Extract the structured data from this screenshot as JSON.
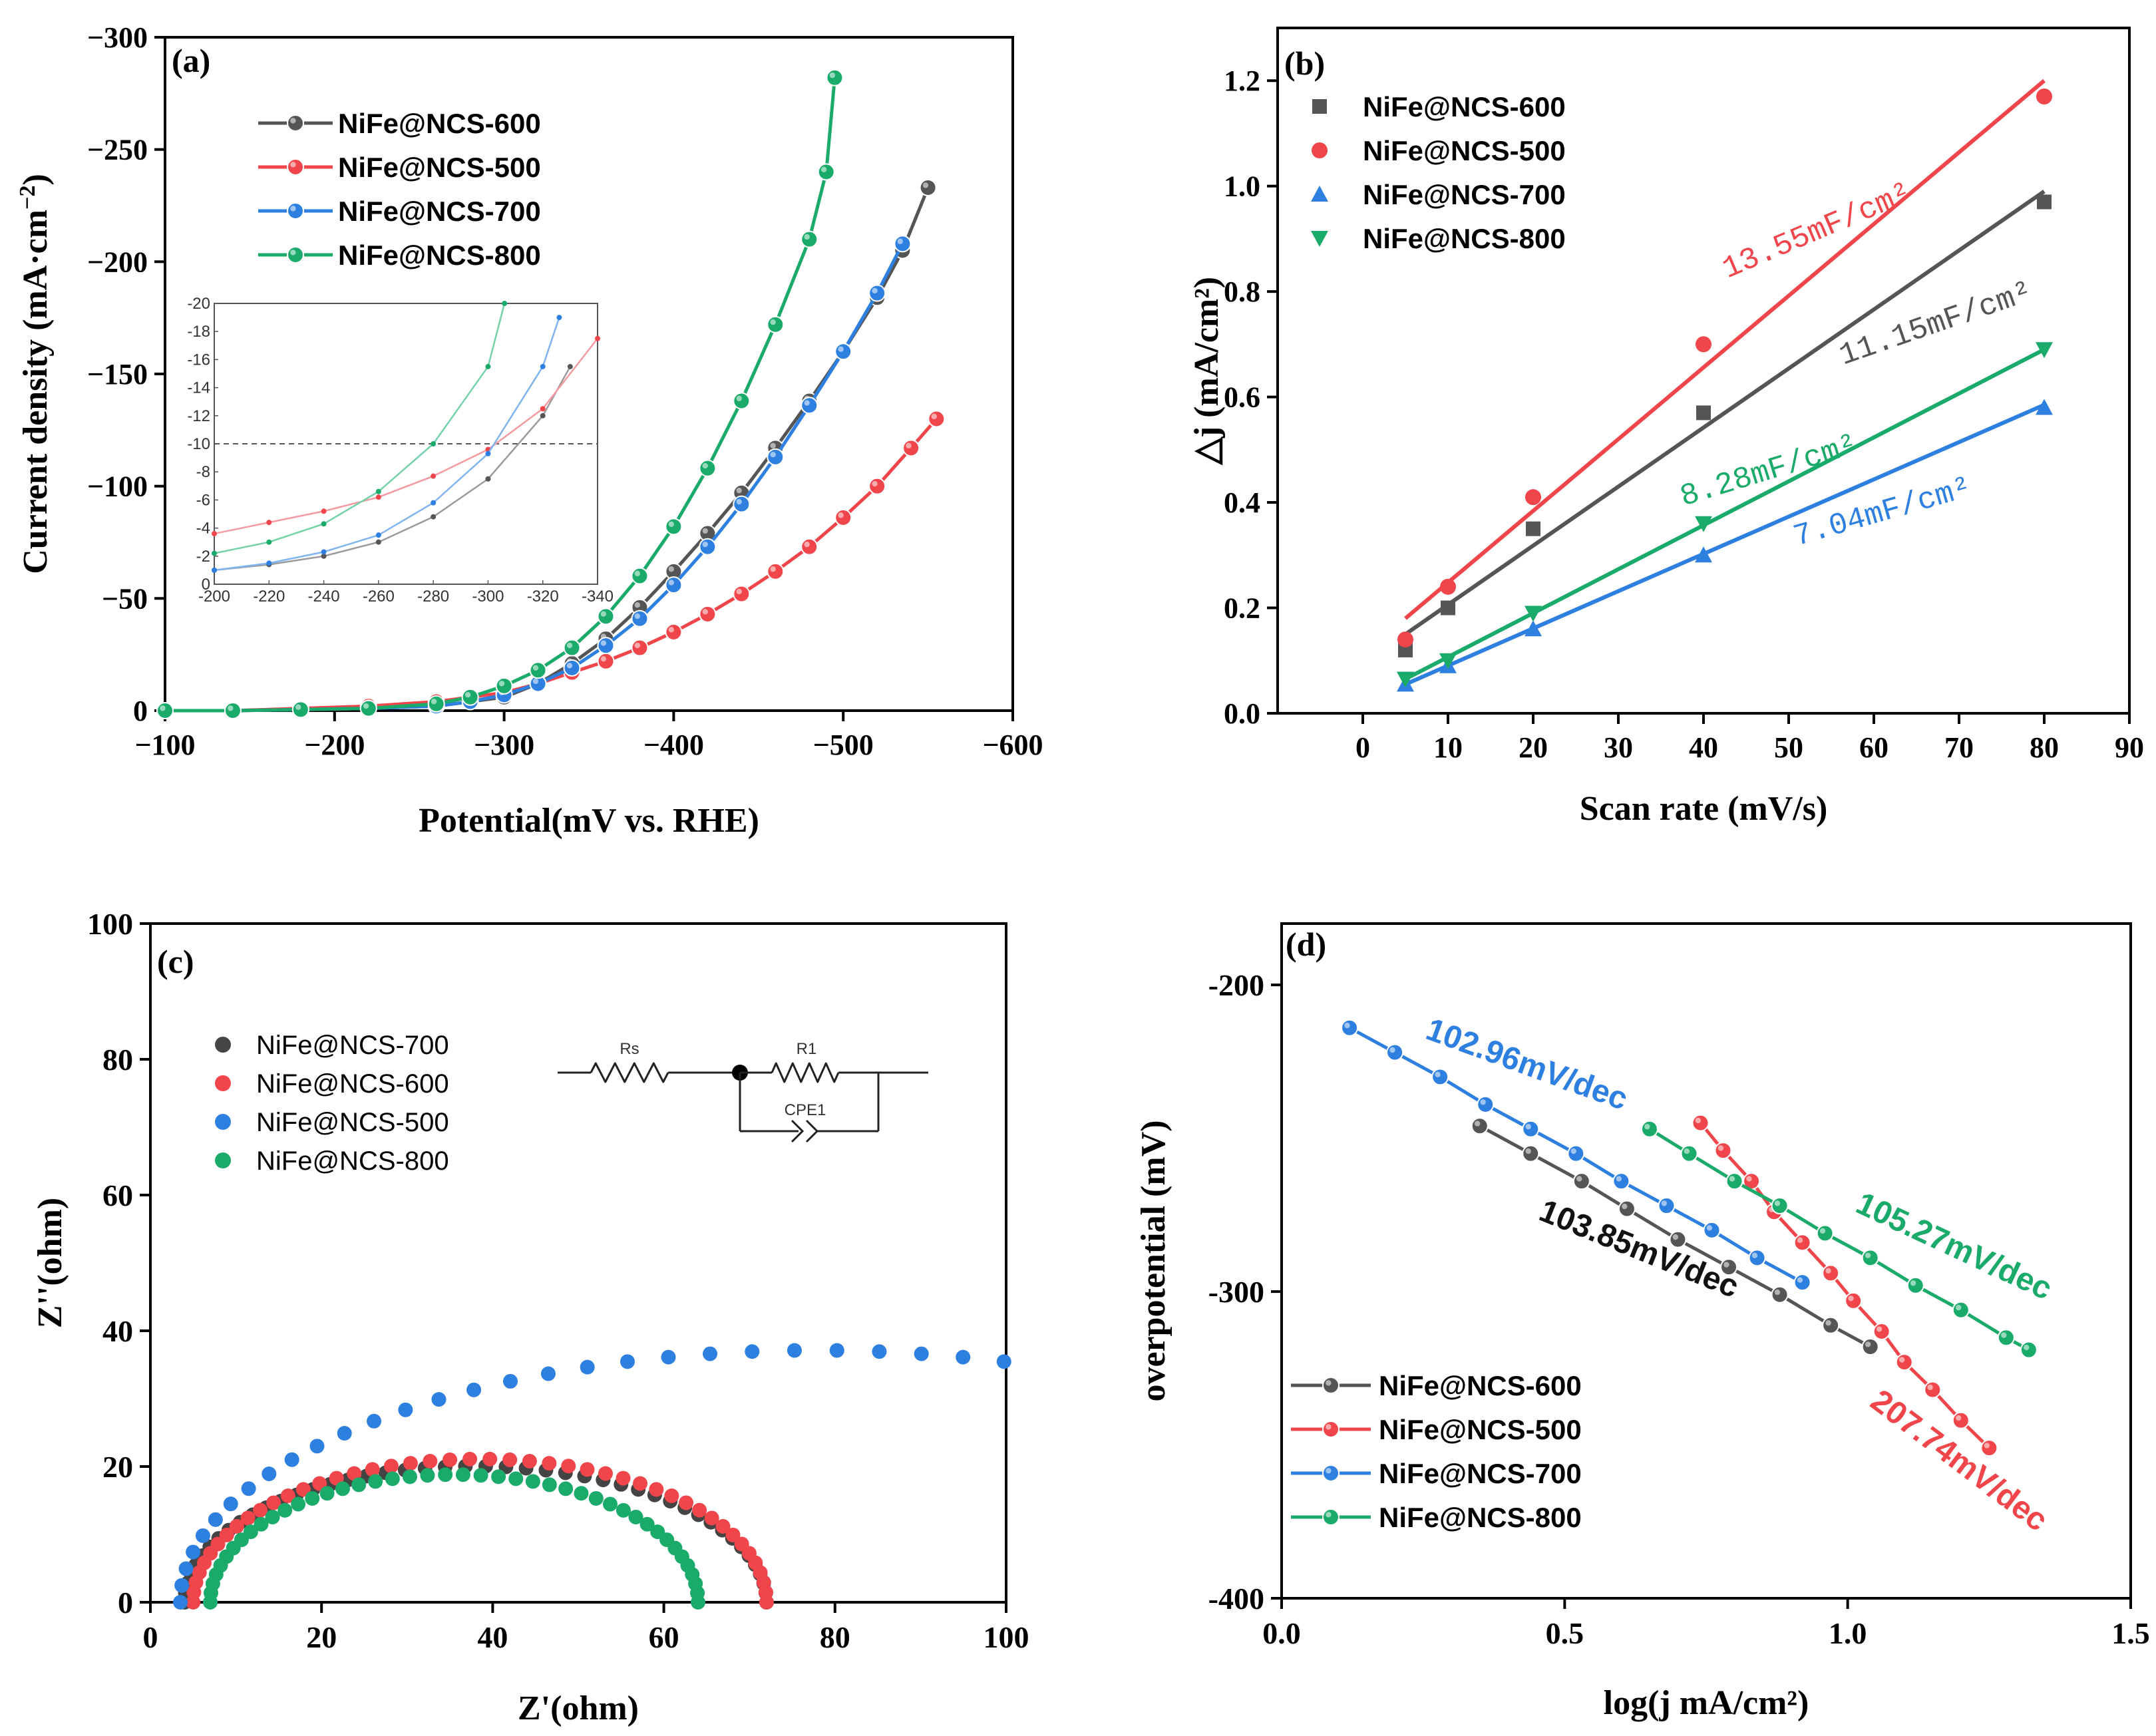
{
  "chart_data": [
    {
      "id": "a",
      "type": "line",
      "panel_label": "(a)",
      "xlabel": "Potential(mV vs. RHE)",
      "ylabel_parts": [
        "Current density (mA·cm",
        "−2",
        ")"
      ],
      "xlim": [
        -100,
        -600
      ],
      "ylim": [
        0,
        -300
      ],
      "xticks": [
        -100,
        -200,
        -300,
        -400,
        -500,
        -600
      ],
      "xtick_labels": [
        "−100",
        "−200",
        "−300",
        "−400",
        "−500",
        "−600"
      ],
      "yticks": [
        0,
        -50,
        -100,
        -150,
        -200,
        -250,
        -300
      ],
      "ytick_labels": [
        "0",
        "−50",
        "−100",
        "−150",
        "−200",
        "−250",
        "−300"
      ],
      "series": [
        {
          "name": "NiFe@NCS-600",
          "color": "#555555",
          "x": [
            -100,
            -140,
            -180,
            -220,
            -260,
            -300,
            -320,
            -340,
            -360,
            -380,
            -400,
            -420,
            -440,
            -460,
            -480,
            -500,
            -520,
            -535,
            -550
          ],
          "y": [
            0,
            0,
            -0.5,
            -1,
            -2,
            -6,
            -12,
            -21,
            -32,
            -46,
            -62,
            -79,
            -97,
            -117,
            -138,
            -160,
            -184,
            -205,
            -233
          ]
        },
        {
          "name": "NiFe@NCS-500",
          "color": "#f0454a",
          "x": [
            -100,
            -140,
            -180,
            -220,
            -260,
            -300,
            -320,
            -340,
            -360,
            -380,
            -400,
            -420,
            -440,
            -460,
            -480,
            -500,
            -520,
            -540,
            -555
          ],
          "y": [
            0,
            0,
            -1,
            -2,
            -4,
            -8,
            -12,
            -17,
            -22,
            -28,
            -35,
            -43,
            -52,
            -62,
            -73,
            -86,
            -100,
            -117,
            -130
          ]
        },
        {
          "name": "NiFe@NCS-700",
          "color": "#2d7fe0",
          "x": [
            -100,
            -140,
            -180,
            -220,
            -260,
            -280,
            -300,
            -320,
            -340,
            -360,
            -380,
            -400,
            -420,
            -440,
            -460,
            -480,
            -500,
            -520,
            -535
          ],
          "y": [
            0,
            0,
            -0.5,
            -1,
            -2,
            -4,
            -7,
            -12,
            -19,
            -29,
            -41,
            -56,
            -73,
            -92,
            -113,
            -136,
            -160,
            -186,
            -208
          ]
        },
        {
          "name": "NiFe@NCS-800",
          "color": "#1aaa6a",
          "x": [
            -100,
            -140,
            -180,
            -220,
            -260,
            -280,
            -300,
            -320,
            -340,
            -360,
            -380,
            -400,
            -420,
            -440,
            -460,
            -480,
            -490,
            -495
          ],
          "y": [
            0,
            0,
            -0.5,
            -1,
            -3,
            -6,
            -11,
            -18,
            -28,
            -42,
            -60,
            -82,
            -108,
            -138,
            -172,
            -210,
            -240,
            -282
          ]
        }
      ],
      "inset": {
        "xlim": [
          -200,
          -340
        ],
        "ylim": [
          0,
          -20
        ],
        "xticks": [
          -200,
          -220,
          -240,
          -260,
          -280,
          -300,
          -320,
          -340
        ],
        "xtick_labels": [
          "-200",
          "-220",
          "-240",
          "-260",
          "-280",
          "-300",
          "-320",
          "-340"
        ],
        "yticks": [
          0,
          -2,
          -4,
          -6,
          -8,
          -10,
          -12,
          -14,
          -16,
          -18,
          -20
        ],
        "ytick_labels": [
          "0",
          "-2",
          "-4",
          "-6",
          "-8",
          "-10",
          "-12",
          "-14",
          "-16",
          "-18",
          "-20"
        ],
        "reference_line": -10,
        "series": [
          {
            "name": "NiFe@NCS-600",
            "x": [
              -200,
              -220,
              -240,
              -260,
              -280,
              -300,
              -320,
              -330
            ],
            "y": [
              -1,
              -1.4,
              -2,
              -3,
              -4.8,
              -7.5,
              -12,
              -15.5
            ]
          },
          {
            "name": "NiFe@NCS-500",
            "x": [
              -200,
              -220,
              -240,
              -260,
              -280,
              -300,
              -320,
              -340
            ],
            "y": [
              -3.6,
              -4.4,
              -5.2,
              -6.2,
              -7.7,
              -9.6,
              -12.5,
              -17.5
            ]
          },
          {
            "name": "NiFe@NCS-700",
            "x": [
              -200,
              -220,
              -240,
              -260,
              -280,
              -300,
              -320,
              -326
            ],
            "y": [
              -1,
              -1.5,
              -2.3,
              -3.5,
              -5.8,
              -9.3,
              -15.5,
              -19
            ]
          },
          {
            "name": "NiFe@NCS-800",
            "x": [
              -200,
              -220,
              -240,
              -260,
              -280,
              -300,
              -306
            ],
            "y": [
              -2.2,
              -3,
              -4.3,
              -6.6,
              -10,
              -15.5,
              -20
            ]
          }
        ]
      }
    },
    {
      "id": "b",
      "type": "scatter",
      "panel_label": "(b)",
      "xlabel": "Scan rate (mV/s)",
      "ylabel": "△j (mA/cm²)",
      "xlim": [
        -10,
        90
      ],
      "ylim": [
        0,
        1.3
      ],
      "xticks": [
        0,
        10,
        20,
        30,
        40,
        50,
        60,
        70,
        80,
        90
      ],
      "xtick_labels": [
        "0",
        "10",
        "20",
        "30",
        "40",
        "50",
        "60",
        "70",
        "80",
        "90"
      ],
      "yticks": [
        0,
        0.2,
        0.4,
        0.6,
        0.8,
        1.0,
        1.2
      ],
      "ytick_labels": [
        "0.0",
        "0.2",
        "0.4",
        "0.6",
        "0.8",
        "1.0",
        "1.2"
      ],
      "series": [
        {
          "name": "NiFe@NCS-600",
          "color": "#555555",
          "marker": "square",
          "x": [
            5,
            10,
            20,
            40,
            80
          ],
          "y": [
            0.12,
            0.2,
            0.35,
            0.57,
            0.97
          ],
          "fit": [
            [
              5,
              0.15
            ],
            [
              80,
              0.99
            ]
          ],
          "annotation": "11.15mF/cm²"
        },
        {
          "name": "NiFe@NCS-500",
          "color": "#f0454a",
          "marker": "circle",
          "x": [
            5,
            10,
            20,
            40,
            80
          ],
          "y": [
            0.14,
            0.24,
            0.41,
            0.7,
            1.17
          ],
          "fit": [
            [
              5,
              0.18
            ],
            [
              80,
              1.2
            ]
          ],
          "annotation": "13.55mF/cm²"
        },
        {
          "name": "NiFe@NCS-700",
          "color": "#2d7fe0",
          "marker": "triangle-up",
          "x": [
            5,
            10,
            20,
            40,
            80
          ],
          "y": [
            0.055,
            0.09,
            0.16,
            0.3,
            0.58
          ],
          "fit": [
            [
              5,
              0.055
            ],
            [
              80,
              0.585
            ]
          ],
          "annotation": "7.04mF/cm²"
        },
        {
          "name": "NiFe@NCS-800",
          "color": "#1aaa6a",
          "marker": "triangle-down",
          "x": [
            5,
            10,
            20,
            40,
            80
          ],
          "y": [
            0.065,
            0.1,
            0.19,
            0.36,
            0.69
          ],
          "fit": [
            [
              5,
              0.065
            ],
            [
              80,
              0.69
            ]
          ],
          "annotation": "8.28mF/cm²"
        }
      ]
    },
    {
      "id": "c",
      "type": "scatter",
      "panel_label": "(c)",
      "xlabel": "Z'(ohm)",
      "ylabel": "Z''(ohm)",
      "xlim": [
        0,
        100
      ],
      "ylim": [
        0,
        100
      ],
      "xticks": [
        0,
        20,
        40,
        60,
        80,
        100
      ],
      "xtick_labels": [
        "0",
        "20",
        "40",
        "60",
        "80",
        "100"
      ],
      "yticks": [
        0,
        20,
        40,
        60,
        80,
        100
      ],
      "ytick_labels": [
        "0",
        "20",
        "40",
        "60",
        "80",
        "100"
      ],
      "circuit_labels": [
        "Rs",
        "R1",
        "CPE1"
      ],
      "series": [
        {
          "name": "NiFe@NCS-700",
          "color": "#444444",
          "shape": "semicircle",
          "r0": 4,
          "r1": 72,
          "depression": 0.59,
          "count": 46
        },
        {
          "name": "NiFe@NCS-600",
          "color": "#f0454a",
          "shape": "semicircle",
          "r0": 5,
          "r1": 72,
          "depression": 0.63,
          "count": 46
        },
        {
          "name": "NiFe@NCS-500",
          "color": "#2d7fe0",
          "shape": "semicircle",
          "r0": 3.5,
          "r1": 152,
          "depression": 0.5,
          "count": 48
        },
        {
          "name": "NiFe@NCS-800",
          "color": "#1aaa6a",
          "shape": "semicircle",
          "r0": 7,
          "r1": 64,
          "depression": 0.66,
          "count": 44
        }
      ]
    },
    {
      "id": "d",
      "type": "line",
      "panel_label": "(d)",
      "xlabel": "log(j mA/cm²)",
      "ylabel": "overpotential (mV)",
      "xlim": [
        0,
        1.5
      ],
      "ylim": [
        -400,
        -180
      ],
      "xticks": [
        0,
        0.5,
        1.0,
        1.5
      ],
      "xtick_labels": [
        "0.0",
        "0.5",
        "1.0",
        "1.5"
      ],
      "yticks": [
        -200,
        -300,
        -400
      ],
      "ytick_labels": [
        "-200",
        "-300",
        "-400"
      ],
      "series": [
        {
          "name": "NiFe@NCS-600",
          "color": "#555555",
          "x": [
            0.35,
            0.44,
            0.53,
            0.61,
            0.7,
            0.79,
            0.88,
            0.97,
            1.04
          ],
          "y": [
            -246,
            -255,
            -264,
            -273,
            -283,
            -292,
            -301,
            -311,
            -318
          ],
          "annotation": "103.85mV/dec"
        },
        {
          "name": "NiFe@NCS-500",
          "color": "#f0454a",
          "x": [
            0.74,
            0.78,
            0.83,
            0.87,
            0.92,
            0.97,
            1.01,
            1.06,
            1.1,
            1.15,
            1.2,
            1.25
          ],
          "y": [
            -245,
            -254,
            -264,
            -274,
            -284,
            -294,
            -303,
            -313,
            -323,
            -332,
            -342,
            -351
          ],
          "annotation": "207.74mV/dec"
        },
        {
          "name": "NiFe@NCS-700",
          "color": "#2d7fe0",
          "x": [
            0.12,
            0.2,
            0.28,
            0.36,
            0.44,
            0.52,
            0.6,
            0.68,
            0.76,
            0.84,
            0.92
          ],
          "y": [
            -214,
            -222,
            -230,
            -239,
            -247,
            -255,
            -264,
            -272,
            -280,
            -289,
            -297
          ],
          "annotation": "102.96mV/dec"
        },
        {
          "name": "NiFe@NCS-800",
          "color": "#1aaa6a",
          "x": [
            0.65,
            0.72,
            0.8,
            0.88,
            0.96,
            1.04,
            1.12,
            1.2,
            1.28,
            1.32
          ],
          "y": [
            -247,
            -255,
            -264,
            -272,
            -281,
            -289,
            -298,
            -306,
            -315,
            -319
          ],
          "annotation": "105.27mV/dec"
        }
      ]
    }
  ]
}
